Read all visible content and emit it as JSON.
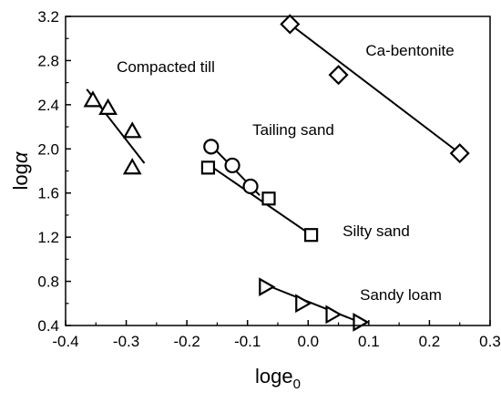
{
  "chart_data": {
    "type": "scatter",
    "xlabel": "loge",
    "xlabel_sub": "0",
    "ylabel": "log",
    "ylabel_greek": "α",
    "xlim": [
      -0.4,
      0.3
    ],
    "ylim": [
      0.4,
      3.2
    ],
    "xticks": [
      "-0.4",
      "-0.3",
      "-0.2",
      "-0.1",
      "0.0",
      "0.1",
      "0.2",
      "0.3"
    ],
    "yticks": [
      "0.4",
      "0.8",
      "1.2",
      "1.6",
      "2.0",
      "2.4",
      "2.8",
      "3.2"
    ],
    "grid": false,
    "series": [
      {
        "name": "Compacted till",
        "marker": "triangle-up",
        "points": [
          [
            -0.355,
            2.44
          ],
          [
            -0.33,
            2.37
          ],
          [
            -0.29,
            2.16
          ],
          [
            -0.29,
            1.83
          ]
        ],
        "fit": [
          [
            -0.365,
            2.54
          ],
          [
            -0.27,
            1.87
          ]
        ]
      },
      {
        "name": "Tailing sand",
        "marker": "circle",
        "points": [
          [
            -0.16,
            2.02
          ],
          [
            -0.125,
            1.85
          ],
          [
            -0.095,
            1.66
          ]
        ],
        "fit": [
          [
            -0.165,
            2.06
          ],
          [
            -0.08,
            1.58
          ]
        ]
      },
      {
        "name": "Silty sand",
        "marker": "square",
        "points": [
          [
            -0.165,
            1.83
          ],
          [
            -0.065,
            1.55
          ],
          [
            0.005,
            1.22
          ]
        ],
        "fit": [
          [
            -0.165,
            1.86
          ],
          [
            0.005,
            1.22
          ]
        ]
      },
      {
        "name": "Ca-bentonite",
        "marker": "diamond",
        "points": [
          [
            -0.03,
            3.13
          ],
          [
            0.05,
            2.67
          ],
          [
            0.25,
            1.96
          ]
        ],
        "fit": [
          [
            -0.03,
            3.13
          ],
          [
            0.25,
            1.96
          ]
        ]
      },
      {
        "name": "Sandy loam",
        "marker": "triangle-right",
        "points": [
          [
            -0.07,
            0.75
          ],
          [
            -0.01,
            0.6
          ],
          [
            0.04,
            0.5
          ],
          [
            0.085,
            0.43
          ]
        ],
        "fit": [
          [
            -0.075,
            0.78
          ],
          [
            0.085,
            0.43
          ]
        ]
      }
    ],
    "annotations": [
      {
        "text": "Compacted till",
        "series": "Compacted till"
      },
      {
        "text": "Tailing sand",
        "series": "Tailing sand"
      },
      {
        "text": "Silty sand",
        "series": "Silty sand"
      },
      {
        "text": "Ca-bentonite",
        "series": "Ca-bentonite"
      },
      {
        "text": "Sandy loam",
        "series": "Sandy loam"
      }
    ]
  }
}
